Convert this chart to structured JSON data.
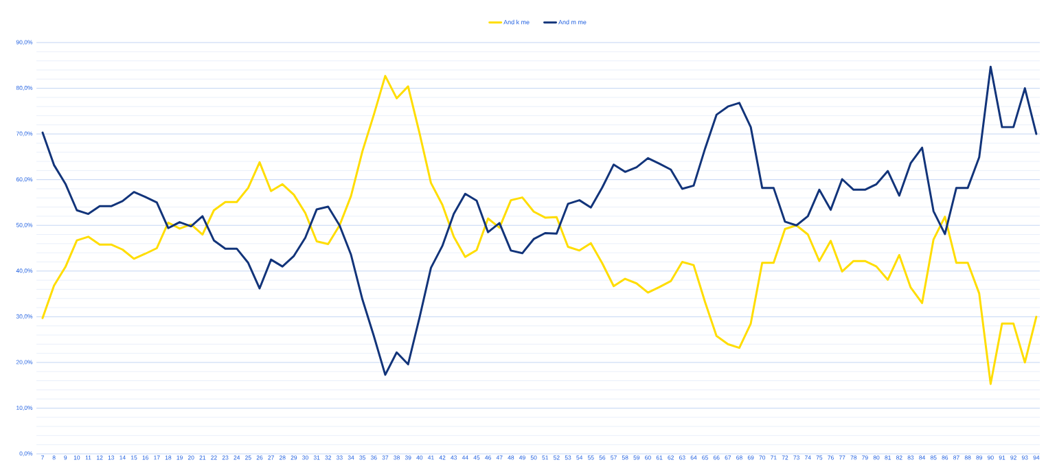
{
  "chart_data": {
    "type": "line",
    "categories": [
      "7",
      "8",
      "9",
      "10",
      "11",
      "12",
      "13",
      "14",
      "15",
      "16",
      "17",
      "18",
      "19",
      "20",
      "21",
      "22",
      "23",
      "24",
      "25",
      "26",
      "27",
      "28",
      "29",
      "30",
      "31",
      "32",
      "33",
      "34",
      "35",
      "36",
      "37",
      "38",
      "39",
      "40",
      "41",
      "42",
      "43",
      "44",
      "45",
      "46",
      "47",
      "48",
      "49",
      "50",
      "51",
      "52",
      "53",
      "54",
      "55",
      "56",
      "57",
      "58",
      "59",
      "60",
      "61",
      "62",
      "63",
      "64",
      "65",
      "66",
      "67",
      "68",
      "69",
      "70",
      "71",
      "72",
      "73",
      "74",
      "75",
      "76",
      "77",
      "78",
      "79",
      "80",
      "81",
      "82",
      "83",
      "84",
      "85",
      "86",
      "87",
      "88",
      "89",
      "90",
      "91",
      "92",
      "93",
      "94"
    ],
    "series": [
      {
        "name": "And k me",
        "color": "#ffdd00",
        "values": [
          29.7,
          36.8,
          40.9,
          46.7,
          47.5,
          45.8,
          45.8,
          44.7,
          42.7,
          43.8,
          45.0,
          50.6,
          49.3,
          50.2,
          48.0,
          53.3,
          55.1,
          55.1,
          58.2,
          63.8,
          57.5,
          59.0,
          56.7,
          52.7,
          46.5,
          45.9,
          50.0,
          56.4,
          66.2,
          74.2,
          82.7,
          77.8,
          80.4,
          70.2,
          59.3,
          54.5,
          47.5,
          43.1,
          44.6,
          51.5,
          49.5,
          55.5,
          56.1,
          53.0,
          51.7,
          51.8,
          45.3,
          44.5,
          46.1,
          41.7,
          36.7,
          38.3,
          37.3,
          35.3,
          36.5,
          37.8,
          42.0,
          41.3,
          33.2,
          25.8,
          24.0,
          23.2,
          28.5,
          41.8,
          41.8,
          49.2,
          50.0,
          48.0,
          42.2,
          46.6,
          39.9,
          42.2,
          42.2,
          41.0,
          38.1,
          43.5,
          36.4,
          33.0,
          46.9,
          51.9,
          41.8,
          41.8,
          35.1,
          15.3,
          28.5,
          28.5,
          20.0,
          30.0
        ]
      },
      {
        "name": "And m  me",
        "color": "#12347a",
        "values": [
          70.3,
          63.2,
          59.1,
          53.3,
          52.5,
          54.2,
          54.2,
          55.3,
          57.3,
          56.2,
          55.0,
          49.4,
          50.7,
          49.8,
          52.0,
          46.7,
          44.9,
          44.9,
          41.8,
          36.2,
          42.5,
          41.0,
          43.3,
          47.3,
          53.5,
          54.1,
          50.0,
          43.6,
          33.8,
          25.8,
          17.3,
          22.2,
          19.6,
          29.8,
          40.7,
          45.5,
          52.5,
          56.9,
          55.4,
          48.5,
          50.5,
          44.5,
          43.9,
          47.0,
          48.3,
          48.2,
          54.7,
          55.5,
          53.9,
          58.3,
          63.3,
          61.7,
          62.7,
          64.7,
          63.5,
          62.2,
          58.0,
          58.7,
          66.8,
          74.2,
          76.0,
          76.8,
          71.5,
          58.2,
          58.2,
          50.8,
          50.0,
          52.0,
          57.8,
          53.4,
          60.1,
          57.8,
          57.8,
          59.0,
          61.9,
          56.5,
          63.6,
          67.0,
          53.1,
          48.1,
          58.2,
          58.2,
          64.9,
          84.7,
          71.5,
          71.5,
          80.0,
          70.0
        ]
      }
    ],
    "ylim": [
      0,
      90
    ],
    "yticks": [
      {
        "value": 0,
        "label": "0,0%"
      },
      {
        "value": 2,
        "label": null
      },
      {
        "value": 4,
        "label": null
      },
      {
        "value": 6,
        "label": null
      },
      {
        "value": 8,
        "label": null
      },
      {
        "value": 10,
        "label": "10,0%"
      },
      {
        "value": 12,
        "label": null
      },
      {
        "value": 14,
        "label": null
      },
      {
        "value": 16,
        "label": null
      },
      {
        "value": 18,
        "label": null
      },
      {
        "value": 20,
        "label": "20,0%"
      },
      {
        "value": 22,
        "label": null
      },
      {
        "value": 24,
        "label": null
      },
      {
        "value": 26,
        "label": null
      },
      {
        "value": 28,
        "label": null
      },
      {
        "value": 30,
        "label": "30,0%"
      },
      {
        "value": 32,
        "label": null
      },
      {
        "value": 34,
        "label": null
      },
      {
        "value": 36,
        "label": null
      },
      {
        "value": 38,
        "label": null
      },
      {
        "value": 40,
        "label": "40,0%"
      },
      {
        "value": 42,
        "label": null
      },
      {
        "value": 44,
        "label": null
      },
      {
        "value": 46,
        "label": null
      },
      {
        "value": 48,
        "label": null
      },
      {
        "value": 50,
        "label": "50,0%"
      },
      {
        "value": 52,
        "label": null
      },
      {
        "value": 54,
        "label": null
      },
      {
        "value": 56,
        "label": null
      },
      {
        "value": 58,
        "label": null
      },
      {
        "value": 60,
        "label": "60,0%"
      },
      {
        "value": 62,
        "label": null
      },
      {
        "value": 64,
        "label": null
      },
      {
        "value": 66,
        "label": null
      },
      {
        "value": 68,
        "label": null
      },
      {
        "value": 70,
        "label": "70,0%"
      },
      {
        "value": 72,
        "label": null
      },
      {
        "value": 74,
        "label": null
      },
      {
        "value": 76,
        "label": null
      },
      {
        "value": 78,
        "label": null
      },
      {
        "value": 80,
        "label": "80,0%"
      },
      {
        "value": 82,
        "label": null
      },
      {
        "value": 84,
        "label": null
      },
      {
        "value": 86,
        "label": null
      },
      {
        "value": 88,
        "label": null
      },
      {
        "value": 90,
        "label": "90,0%"
      }
    ],
    "grid": "y",
    "legend": "top",
    "marker": "none",
    "line_style": "solid"
  }
}
